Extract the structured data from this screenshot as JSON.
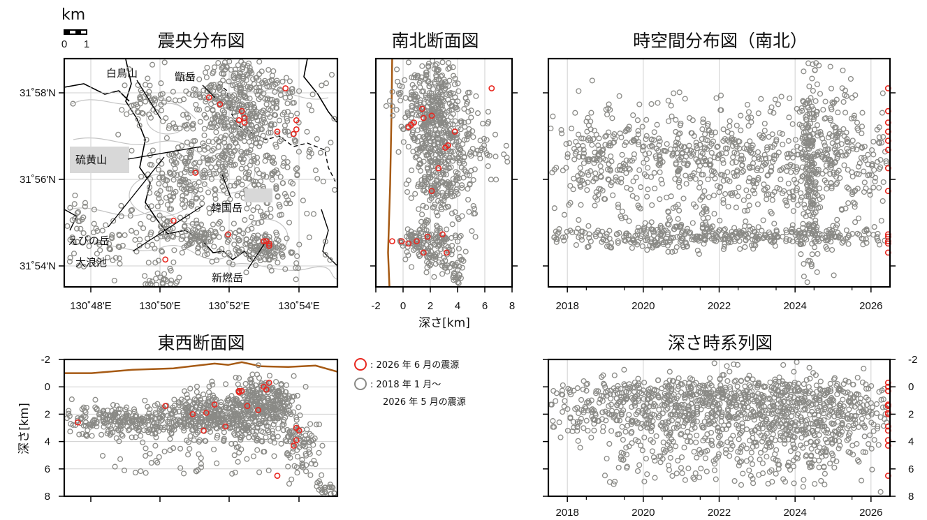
{
  "colors": {
    "recent": "#e8271f",
    "past": "#8a8a86",
    "topo": "#a65a14",
    "frame": "#000000",
    "grid": "#cfcfcf",
    "contour": "#c4c4c4"
  },
  "scale_bar": {
    "unit": "km",
    "left": "0",
    "right": "1"
  },
  "legend": {
    "recent": ": 2026 年 6 月の震源",
    "past_line1": ": 2018 年 1 月～",
    "past_line2": "2026 年 5 月の震源"
  },
  "place_names": {
    "hakuchou": "白鳥山",
    "koshiki": "甑岳",
    "iwo": "硫黄山",
    "karakuni": "韓国岳",
    "ebino": "えびの岳",
    "ounami": "大浪池",
    "shinmoe": "新燃岳"
  },
  "chart_data": [
    {
      "id": "epicenter_map",
      "type": "scatter",
      "title": "震央分布図",
      "x_tick_labels": [
        "130˚48'E",
        "130˚50'E",
        "130˚52'E",
        "130˚54'E"
      ],
      "y_tick_labels": [
        "31˚58'N",
        "31˚56'N",
        "31˚54'N"
      ],
      "grid": true,
      "clusters": [
        {
          "x": 25,
          "y": 77,
          "sx": 22,
          "sy": 8,
          "n": 150
        },
        {
          "x": 30,
          "y": 20,
          "sx": 5,
          "sy": 5,
          "n": 40
        },
        {
          "x": 39,
          "y": 55,
          "sx": 6,
          "sy": 6,
          "n": 60
        },
        {
          "x": 50,
          "y": 50,
          "sx": 7,
          "sy": 8,
          "n": 90
        },
        {
          "x": 58,
          "y": 30,
          "sx": 10,
          "sy": 16,
          "n": 260
        },
        {
          "x": 63,
          "y": 12,
          "sx": 8,
          "sy": 7,
          "n": 120
        },
        {
          "x": 70,
          "y": 28,
          "sx": 8,
          "sy": 10,
          "n": 140
        },
        {
          "x": 75,
          "y": 55,
          "sx": 6,
          "sy": 8,
          "n": 70
        },
        {
          "x": 48,
          "y": 78,
          "sx": 5,
          "sy": 3,
          "n": 60
        },
        {
          "x": 64,
          "y": 80,
          "sx": 6,
          "sy": 4,
          "n": 50
        },
        {
          "x": 74,
          "y": 83,
          "sx": 4,
          "sy": 3,
          "n": 80
        },
        {
          "x": 35,
          "y": 99,
          "sx": 4,
          "sy": 3,
          "n": 40
        },
        {
          "x": 80,
          "y": 50,
          "sx": 16,
          "sy": 40,
          "n": 60,
          "sparse": true
        },
        {
          "x": 50,
          "y": 50,
          "sx": 40,
          "sy": 40,
          "n": 60,
          "sparse": true
        }
      ],
      "recent": [
        [
          53,
          17
        ],
        [
          57,
          20
        ],
        [
          81,
          13
        ],
        [
          65,
          23
        ],
        [
          66,
          26
        ],
        [
          66,
          28
        ],
        [
          64,
          27
        ],
        [
          78,
          32
        ],
        [
          85,
          27
        ],
        [
          85,
          31
        ],
        [
          84,
          33
        ],
        [
          48,
          50
        ],
        [
          40,
          71
        ],
        [
          60,
          77
        ],
        [
          74,
          80
        ],
        [
          75,
          81
        ],
        [
          75,
          82
        ],
        [
          73,
          80
        ],
        [
          37,
          88
        ]
      ]
    },
    {
      "id": "ns_section",
      "type": "scatter",
      "title": "南北断面図",
      "xlabel": "深さ[km]",
      "x_ticks": [
        -2,
        0,
        2,
        4,
        6,
        8
      ],
      "xlim": [
        -2,
        8
      ],
      "clusters": [
        {
          "x": 2.0,
          "y": 22,
          "sx": 1.1,
          "sy": 13,
          "n": 380
        },
        {
          "x": 2.4,
          "y": 50,
          "sx": 0.9,
          "sy": 11,
          "n": 170
        },
        {
          "x": 0.8,
          "y": 80,
          "sx": 0.6,
          "sy": 3,
          "n": 60
        },
        {
          "x": 2.5,
          "y": 82,
          "sx": 0.6,
          "sy": 6,
          "n": 90
        },
        {
          "x": 4.6,
          "y": 38,
          "sx": 1.2,
          "sy": 10,
          "n": 80
        },
        {
          "x": 3.8,
          "y": 92,
          "sx": 0.4,
          "sy": 5,
          "n": 40
        },
        {
          "x": 3.0,
          "y": 50,
          "sx": 2.0,
          "sy": 30,
          "n": 80,
          "sparse": true
        }
      ],
      "recent": [
        [
          6.5,
          13
        ],
        [
          1.4,
          22
        ],
        [
          0.6,
          29
        ],
        [
          0.4,
          30
        ],
        [
          0.8,
          28
        ],
        [
          1.5,
          26
        ],
        [
          2.1,
          25
        ],
        [
          3.8,
          32
        ],
        [
          3.3,
          38
        ],
        [
          3.1,
          39
        ],
        [
          2.6,
          48
        ],
        [
          2.1,
          58
        ],
        [
          -0.8,
          80
        ],
        [
          -0.1,
          80
        ],
        [
          0.4,
          81
        ],
        [
          1.0,
          80
        ],
        [
          1.8,
          78
        ],
        [
          2.9,
          77
        ],
        [
          1.5,
          85
        ],
        [
          3.2,
          85
        ]
      ],
      "topography": [
        [
          -0.8,
          0
        ],
        [
          -0.85,
          25
        ],
        [
          -0.95,
          55
        ],
        [
          -1.1,
          85
        ],
        [
          -1.0,
          100
        ]
      ]
    },
    {
      "id": "space_time",
      "type": "scatter",
      "title": "時空間分布図（南北）",
      "x_tick_labels": [
        "2018",
        "2020",
        "2022",
        "2024",
        "2026"
      ],
      "x_ticks": [
        2018,
        2020,
        2022,
        2024,
        2026
      ],
      "xlim": [
        2017.5,
        2026.5
      ],
      "clusters": [
        {
          "x": 2022.0,
          "y": 78,
          "sx": 2.6,
          "sy": 2.5,
          "n": 420
        },
        {
          "x": 2022.0,
          "y": 40,
          "sx": 2.6,
          "sy": 6,
          "n": 360
        },
        {
          "x": 2022.0,
          "y": 55,
          "sx": 2.6,
          "sy": 7,
          "n": 200
        },
        {
          "x": 2024.4,
          "y": 50,
          "sx": 0.12,
          "sy": 28,
          "n": 200
        },
        {
          "x": 2025.2,
          "y": 40,
          "sx": 0.6,
          "sy": 18,
          "n": 160
        },
        {
          "x": 2018.4,
          "y": 45,
          "sx": 0.6,
          "sy": 14,
          "n": 90
        },
        {
          "x": 2022.0,
          "y": 50,
          "sx": 2.6,
          "sy": 30,
          "n": 200,
          "sparse": true
        }
      ],
      "recent": [
        [
          2026.45,
          13
        ],
        [
          2026.45,
          23
        ],
        [
          2026.45,
          28
        ],
        [
          2026.45,
          32
        ],
        [
          2026.45,
          36
        ],
        [
          2026.45,
          40
        ],
        [
          2026.45,
          48
        ],
        [
          2026.45,
          58
        ],
        [
          2026.45,
          77
        ],
        [
          2026.45,
          78
        ],
        [
          2026.45,
          80
        ],
        [
          2026.45,
          81
        ],
        [
          2026.45,
          85
        ]
      ]
    },
    {
      "id": "ew_section",
      "type": "scatter",
      "title": "東西断面図",
      "ylabel": "深さ[km]",
      "y_ticks": [
        -2,
        0,
        2,
        4,
        6,
        8
      ],
      "ylim": [
        -2,
        8
      ],
      "clusters": [
        {
          "x": 25,
          "y": 2.4,
          "sx": 16,
          "sy": 0.6,
          "n": 300
        },
        {
          "x": 55,
          "y": 1.9,
          "sx": 8,
          "sy": 0.9,
          "n": 260
        },
        {
          "x": 75,
          "y": 1.3,
          "sx": 5,
          "sy": 0.9,
          "n": 200
        },
        {
          "x": 67,
          "y": 1.8,
          "sx": 3,
          "sy": 1.2,
          "n": 120
        },
        {
          "x": 86,
          "y": 3.8,
          "sx": 4,
          "sy": 1.2,
          "n": 90
        },
        {
          "x": 97,
          "y": 7.5,
          "sx": 2.5,
          "sy": 0.4,
          "n": 40
        },
        {
          "x": 50,
          "y": 4.0,
          "sx": 30,
          "sy": 2.0,
          "n": 120,
          "sparse": true
        }
      ],
      "recent": [
        [
          5,
          2.6
        ],
        [
          37,
          1.4
        ],
        [
          47,
          2.0
        ],
        [
          52,
          1.9
        ],
        [
          55,
          1.3
        ],
        [
          59,
          2.9
        ],
        [
          51,
          3.2
        ],
        [
          64,
          0.4
        ],
        [
          65,
          0.3
        ],
        [
          64,
          0.3
        ],
        [
          67,
          1.4
        ],
        [
          71,
          1.7
        ],
        [
          73,
          0.0
        ],
        [
          74,
          0.2
        ],
        [
          75,
          -0.3
        ],
        [
          85,
          3.0
        ],
        [
          86,
          3.2
        ],
        [
          85,
          3.9
        ],
        [
          84,
          4.3
        ],
        [
          78,
          6.5
        ]
      ],
      "topography": [
        [
          0,
          -1.0
        ],
        [
          10,
          -1.0
        ],
        [
          25,
          -1.25
        ],
        [
          40,
          -1.35
        ],
        [
          55,
          -1.7
        ],
        [
          60,
          -1.6
        ],
        [
          65,
          -1.8
        ],
        [
          72,
          -1.5
        ],
        [
          82,
          -1.45
        ],
        [
          92,
          -1.55
        ],
        [
          100,
          -1.1
        ]
      ]
    },
    {
      "id": "depth_time",
      "type": "scatter",
      "title": "深さ時系列図",
      "x_tick_labels": [
        "2018",
        "2020",
        "2022",
        "2024",
        "2026"
      ],
      "x_ticks": [
        2018,
        2020,
        2022,
        2024,
        2026
      ],
      "xlim": [
        2017.5,
        2026.5
      ],
      "y_ticks": [
        -2,
        0,
        2,
        4,
        6,
        8
      ],
      "ylim": [
        -2,
        8
      ],
      "clusters": [
        {
          "x": 2022.0,
          "y": 1.8,
          "sx": 2.6,
          "sy": 1.3,
          "n": 900
        },
        {
          "x": 2022.0,
          "y": 0.3,
          "sx": 2.6,
          "sy": 0.4,
          "n": 260
        },
        {
          "x": 2024.5,
          "y": 3.0,
          "sx": 0.9,
          "sy": 1.6,
          "n": 200
        },
        {
          "x": 2022.0,
          "y": 5.5,
          "sx": 2.6,
          "sy": 1.4,
          "n": 140,
          "sparse": true
        }
      ],
      "recent": [
        [
          2026.45,
          -0.3
        ],
        [
          2026.45,
          0.0
        ],
        [
          2026.45,
          0.3
        ],
        [
          2026.45,
          1.3
        ],
        [
          2026.45,
          1.4
        ],
        [
          2026.45,
          1.9
        ],
        [
          2026.45,
          2.0
        ],
        [
          2026.45,
          2.9
        ],
        [
          2026.45,
          3.2
        ],
        [
          2026.45,
          3.9
        ],
        [
          2026.45,
          4.3
        ],
        [
          2026.45,
          6.5
        ]
      ]
    }
  ]
}
